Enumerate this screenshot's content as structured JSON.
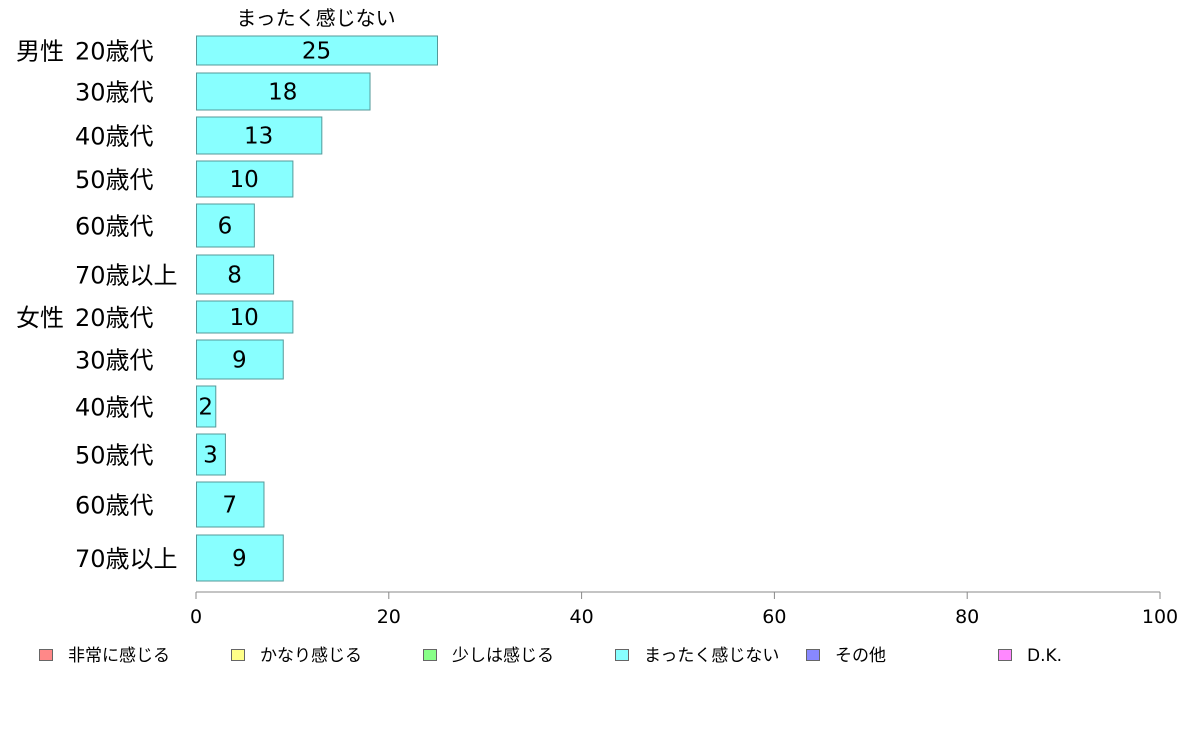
{
  "chart_data": {
    "type": "bar",
    "orientation": "horizontal",
    "title": "まったく感じない",
    "groups": [
      {
        "label": "男性",
        "first_index": 0
      },
      {
        "label": "女性",
        "first_index": 6
      }
    ],
    "categories": [
      "20歳代",
      "30歳代",
      "40歳代",
      "50歳代",
      "60歳代",
      "70歳以上",
      "20歳代",
      "30歳代",
      "40歳代",
      "50歳代",
      "60歳代",
      "70歳以上"
    ],
    "series": [
      {
        "name": "まったく感じない",
        "values": [
          25,
          18,
          13,
          10,
          6,
          8,
          10,
          9,
          2,
          3,
          7,
          9
        ],
        "color": "#88ffff"
      }
    ],
    "xlim": [
      0,
      100
    ],
    "xticks": [
      0,
      20,
      40,
      60,
      80,
      100
    ],
    "grid": false,
    "legend_position": "bottom",
    "legend": [
      {
        "label": "非常に感じる",
        "color": "#ff8888"
      },
      {
        "label": "かなり感じる",
        "color": "#ffff88"
      },
      {
        "label": "少しは感じる",
        "color": "#88ff88"
      },
      {
        "label": "まったく感じない",
        "color": "#88ffff"
      },
      {
        "label": "その他",
        "color": "#8888ff"
      },
      {
        "label": "D.K.",
        "color": "#ff88ff"
      }
    ],
    "colors": {
      "bar_stroke": "#559999",
      "axis": "#888888"
    }
  }
}
